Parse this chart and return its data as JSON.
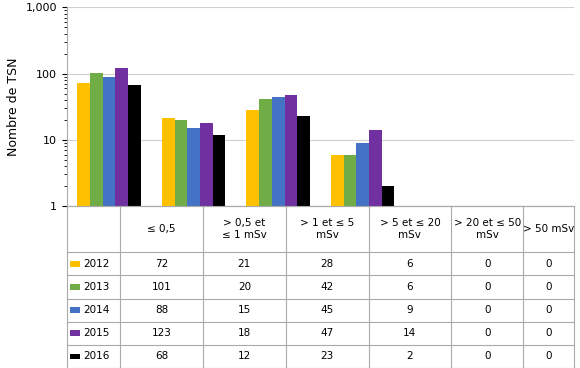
{
  "years": [
    "2012",
    "2013",
    "2014",
    "2015",
    "2016"
  ],
  "colors": [
    "#FFC000",
    "#70AD47",
    "#4472C4",
    "#7030A0",
    "#000000"
  ],
  "categories": [
    "≤ 0,5",
    "> 0,5 et\n≤ 1 mSv",
    "> 1 et ≤ 5\nmSv",
    "> 5 et ≤ 20\nmSv",
    "> 20 et ≤ 50\nmSv",
    "> 50 mSv"
  ],
  "values": {
    "2012": [
      72,
      21,
      28,
      6,
      0,
      0
    ],
    "2013": [
      101,
      20,
      42,
      6,
      0,
      0
    ],
    "2014": [
      88,
      15,
      45,
      9,
      0,
      0
    ],
    "2015": [
      123,
      18,
      47,
      14,
      0,
      0
    ],
    "2016": [
      68,
      12,
      23,
      2,
      0,
      0
    ]
  },
  "ylabel": "Nombre de TSN",
  "ylim_min": 1,
  "ylim_max": 1000,
  "table_data": [
    [
      "2012",
      "72",
      "21",
      "28",
      "6",
      "0",
      "0"
    ],
    [
      "2013",
      "101",
      "20",
      "42",
      "6",
      "0",
      "0"
    ],
    [
      "2014",
      "88",
      "15",
      "45",
      "9",
      "0",
      "0"
    ],
    [
      "2015",
      "123",
      "18",
      "47",
      "14",
      "0",
      "0"
    ],
    [
      "2016",
      "68",
      "12",
      "23",
      "2",
      "0",
      "0"
    ]
  ],
  "background_color": "#FFFFFF",
  "border_color": "#AAAAAA",
  "font_size": 7.5,
  "ylabel_fontsize": 9
}
